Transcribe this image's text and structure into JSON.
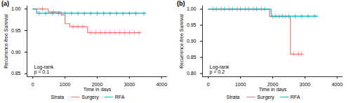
{
  "chart_data": [
    {
      "type": "line",
      "title": "(a)",
      "x_label": "Time in days",
      "y_label": "Recurrence-free Survival",
      "legend_title": "Strata",
      "annotation": [
        "Log-rank",
        "p = 0.1"
      ],
      "xlim": [
        -180,
        4180
      ],
      "xticks": [
        0,
        1000,
        2000,
        3000,
        4000
      ],
      "ylim": [
        0.843,
        1.007
      ],
      "yticks": [
        {
          "value": 0.85,
          "label": "0.85"
        },
        {
          "value": 0.9,
          "label": "0.90"
        },
        {
          "value": 0.95,
          "label": "0.95"
        },
        {
          "value": 1,
          "label": "1.00"
        }
      ],
      "line_style": "step",
      "series": [
        {
          "name": "Surgery",
          "color": "#F8766D",
          "x": [
            0,
            480,
            880,
            1000,
            1150,
            1700,
            3350
          ],
          "values": [
            1,
            0.993,
            0.986,
            0.966,
            0.959,
            0.945,
            0.945
          ],
          "censored": [
            300,
            650,
            1250,
            1400,
            1550,
            1800,
            1950,
            2100,
            2250,
            2400,
            2550,
            2700,
            2850,
            3000,
            3150,
            3300
          ]
        },
        {
          "name": "RFA",
          "color": "#00BFC4",
          "x": [
            0,
            120,
            3500
          ],
          "values": [
            1,
            0.99,
            0.99
          ],
          "censored": [
            200,
            400,
            600,
            800,
            1000,
            1200,
            1400,
            1600,
            1800,
            2000,
            2200,
            2400,
            2600,
            2800,
            3000,
            3200,
            3450
          ]
        }
      ]
    },
    {
      "type": "line",
      "title": "(b)",
      "x_label": "Time in days",
      "y_label": "Recurrence-free Survival",
      "legend_title": "Strata",
      "annotation": [
        "Log-rank",
        "p = 0.2"
      ],
      "xlim": [
        -180,
        4180
      ],
      "xticks": [
        0,
        1000,
        2000,
        3000,
        4000
      ],
      "ylim": [
        0.79,
        1.01
      ],
      "yticks": [
        {
          "value": 0.8,
          "label": "0.80"
        },
        {
          "value": 0.85,
          "label": "0.85"
        },
        {
          "value": 0.9,
          "label": "0.90"
        },
        {
          "value": 0.95,
          "label": "0.95"
        },
        {
          "value": 1,
          "label": "1.00"
        }
      ],
      "line_style": "step",
      "series": [
        {
          "name": "Surgery",
          "color": "#F8766D",
          "x": [
            0,
            1900,
            2550,
            2900
          ],
          "values": [
            1,
            0.977,
            0.86,
            0.86
          ],
          "censored": [
            150,
            400,
            650,
            900,
            1150,
            1400,
            1650,
            2000,
            2200,
            2400,
            2650,
            2800,
            2900
          ]
        },
        {
          "name": "RFA",
          "color": "#00BFC4",
          "x": [
            0,
            1950,
            3400
          ],
          "values": [
            1,
            0.978,
            0.978
          ],
          "censored": [
            250,
            500,
            750,
            1000,
            1250,
            1500,
            1750,
            2100,
            2300,
            2500,
            2700,
            2900,
            3100,
            3300
          ]
        }
      ]
    }
  ]
}
